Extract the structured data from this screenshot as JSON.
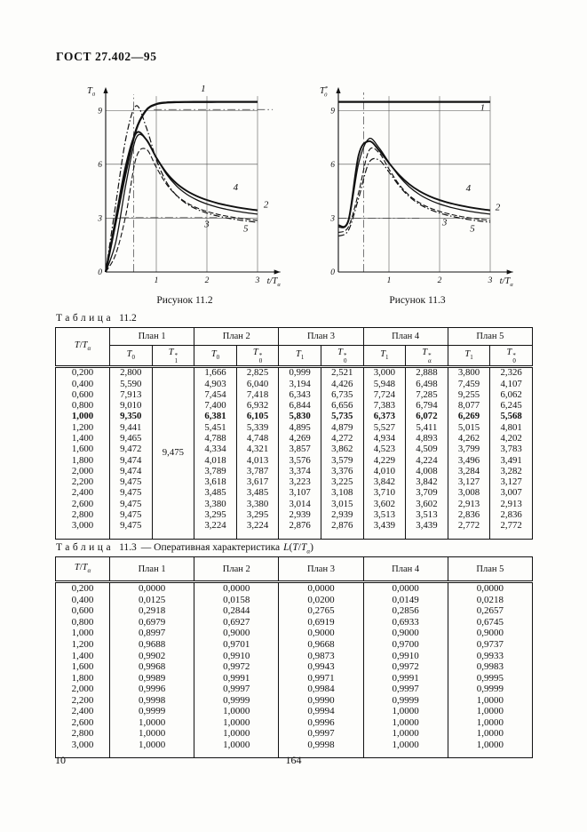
{
  "header": {
    "title": "ГОСТ 27.402—95"
  },
  "figures": [
    {
      "caption": "Рисунок 11.2"
    },
    {
      "caption": "Рисунок 11.3"
    }
  ],
  "chart_data": [
    {
      "type": "line",
      "title": "Рисунок 11.2",
      "ylabel": "T0",
      "xlabel": "t/Ta",
      "y_title": [
        {
          "t": "T"
        },
        {
          "t": "0",
          "sub": true
        }
      ],
      "x_title": [
        {
          "t": "t/T"
        },
        {
          "t": "α",
          "sub": true
        }
      ],
      "xlim": [
        0,
        3.45
      ],
      "ylim": [
        0,
        10.3
      ],
      "xticks": [
        1,
        2,
        3
      ],
      "yticks": [
        0,
        3,
        6,
        9
      ],
      "grid_x": [
        1,
        2,
        3
      ],
      "grid_y": [
        3,
        6,
        9
      ],
      "grid_top": 9.8,
      "grid_right": 3,
      "reflines": [
        {
          "x": 0.55,
          "y1": 0,
          "y2": 9.9
        },
        {
          "y": 9.05,
          "x1": 0.95,
          "x2": 3.3
        },
        {
          "y": 3.03,
          "x1": 0.3,
          "x2": 2.2
        }
      ],
      "x": [
        0,
        0.2,
        0.4,
        0.6,
        0.8,
        1,
        1.2,
        1.4,
        1.6,
        1.8,
        2,
        2.2,
        2.4,
        2.6,
        2.8,
        3
      ],
      "series": [
        {
          "name": "1",
          "dash": "solid",
          "width": 2.3,
          "values": [
            0,
            2.8,
            5.59,
            7.913,
            9.01,
            9.35,
            9.441,
            9.465,
            9.472,
            9.474,
            9.474,
            9.475,
            9.475,
            9.475,
            9.475,
            9.475
          ]
        },
        {
          "name": "2",
          "dash": "solid",
          "width": 1.3,
          "values": [
            0,
            1.666,
            4.903,
            7.454,
            7.4,
            6.381,
            5.451,
            4.788,
            4.334,
            4.018,
            3.789,
            3.618,
            3.485,
            3.38,
            3.295,
            3.224
          ]
        },
        {
          "name": "3",
          "dash": "dashed",
          "width": 1.1,
          "values": [
            0,
            0.999,
            3.194,
            6.343,
            6.844,
            5.83,
            4.895,
            4.269,
            3.857,
            3.576,
            3.374,
            3.223,
            3.107,
            3.014,
            2.939,
            2.876
          ]
        },
        {
          "name": "4",
          "dash": "solid",
          "width": 1.9,
          "values": [
            0,
            3,
            5.948,
            7.724,
            7.383,
            6.373,
            5.527,
            4.934,
            4.523,
            4.229,
            4.01,
            3.842,
            3.71,
            3.602,
            3.513,
            3.439
          ]
        },
        {
          "name": "5",
          "dash": "dashdot",
          "width": 1.2,
          "values": [
            0,
            3.8,
            7.459,
            9.255,
            8.077,
            6.269,
            5.015,
            4.262,
            3.799,
            3.496,
            3.284,
            3.127,
            3.008,
            2.913,
            2.836,
            2.772
          ]
        }
      ],
      "labels": [
        {
          "text": "1",
          "x": 1.88,
          "y": 10.05
        },
        {
          "text": "4",
          "x": 2.52,
          "y": 4.55
        },
        {
          "text": "2",
          "x": 3.12,
          "y": 3.6
        },
        {
          "text": "3",
          "x": 1.95,
          "y": 2.5
        },
        {
          "text": "5",
          "x": 2.72,
          "y": 2.25
        }
      ]
    },
    {
      "type": "line",
      "title": "Рисунок 11.3",
      "ylabel": "T0*",
      "xlabel": "t/Ta",
      "y_title": [
        {
          "t": "T"
        },
        {
          "t": "*",
          "sup": true
        },
        {
          "t": "0",
          "sub": true,
          "under": true
        }
      ],
      "x_title": [
        {
          "t": "t/T"
        },
        {
          "t": "α",
          "sub": true
        }
      ],
      "xlim": [
        0,
        3.45
      ],
      "ylim": [
        0,
        10.3
      ],
      "xticks": [
        1,
        2,
        3
      ],
      "yticks": [
        0,
        3,
        6,
        9
      ],
      "grid_x": [
        1,
        2,
        3
      ],
      "grid_y": [
        3,
        6,
        9
      ],
      "grid_top": 9.8,
      "grid_right": 3,
      "reflines": [
        {
          "x": 0.5,
          "y1": 0,
          "y2": 10
        },
        {
          "y": 3,
          "x1": 0,
          "x2": 1.6
        }
      ],
      "x": [
        0,
        0.2,
        0.4,
        0.6,
        0.8,
        1,
        1.2,
        1.4,
        1.6,
        1.8,
        2,
        2.2,
        2.4,
        2.6,
        2.8,
        3
      ],
      "series": [
        {
          "name": "1",
          "dash": "solid",
          "width": 2.3,
          "values": [
            9.475,
            9.475,
            9.475,
            9.475,
            9.475,
            9.475,
            9.475,
            9.475,
            9.475,
            9.475,
            9.475,
            9.475,
            9.475,
            9.475,
            9.475,
            9.475
          ]
        },
        {
          "name": "2",
          "dash": "solid",
          "width": 1.3,
          "values": [
            2.5,
            2.825,
            6.04,
            7.418,
            6.932,
            6.105,
            5.339,
            4.748,
            4.321,
            4.013,
            3.787,
            3.617,
            3.485,
            3.38,
            3.295,
            3.224
          ]
        },
        {
          "name": "3",
          "dash": "dashed",
          "width": 1.1,
          "values": [
            2.2,
            2.521,
            4.426,
            6.735,
            6.656,
            5.735,
            4.879,
            4.272,
            3.862,
            3.579,
            3.376,
            3.225,
            3.108,
            3.015,
            2.939,
            2.876
          ]
        },
        {
          "name": "4",
          "dash": "solid",
          "width": 1.9,
          "values": [
            2.6,
            2.888,
            6.498,
            7.285,
            6.794,
            6.072,
            5.411,
            4.893,
            4.509,
            4.224,
            4.008,
            3.842,
            3.709,
            3.602,
            3.513,
            3.439
          ]
        },
        {
          "name": "5",
          "dash": "dashdot",
          "width": 1.2,
          "values": [
            2.0,
            2.326,
            4.107,
            6.062,
            6.245,
            5.568,
            4.801,
            4.202,
            3.783,
            3.491,
            3.282,
            3.127,
            3.007,
            2.913,
            2.836,
            2.772
          ]
        }
      ],
      "labels": [
        {
          "text": "1",
          "x": 2.8,
          "y": 9.0
        },
        {
          "text": "4",
          "x": 2.52,
          "y": 4.5
        },
        {
          "text": "2",
          "x": 3.1,
          "y": 3.45
        },
        {
          "text": "3",
          "x": 2.05,
          "y": 2.6
        },
        {
          "text": "5",
          "x": 2.6,
          "y": 2.25
        }
      ]
    }
  ],
  "tables": {
    "t112": {
      "label_word": "Таблица",
      "number": "11.2",
      "corner_parts": [
        {
          "t": "T",
          "i": true
        },
        {
          "t": "/"
        },
        {
          "t": "T",
          "i": true
        },
        {
          "t": "α",
          "sub": true,
          "i": true
        }
      ],
      "plan_headers": [
        "План 1",
        "План 2",
        "План 3",
        "План 4",
        "План 5"
      ],
      "sub_headers": [
        [
          {
            "t": "T",
            "i": true
          },
          {
            "t": "0",
            "sub": true
          }
        ],
        [
          {
            "t": "T",
            "i": true
          },
          {
            "stack": {
              "sup": "*",
              "sub": "1"
            }
          }
        ],
        [
          {
            "t": "T",
            "i": true
          },
          {
            "t": "0",
            "sub": true
          }
        ],
        [
          {
            "t": "T",
            "i": true
          },
          {
            "stack": {
              "sup": "*",
              "sub": "0"
            }
          }
        ],
        [
          {
            "t": "T",
            "i": true
          },
          {
            "t": "1",
            "sub": true
          }
        ],
        [
          {
            "t": "T",
            "i": true
          },
          {
            "stack": {
              "sup": "*",
              "sub": "0"
            }
          }
        ],
        [
          {
            "t": "T",
            "i": true
          },
          {
            "t": "1",
            "sub": true
          }
        ],
        [
          {
            "t": "T",
            "i": true
          },
          {
            "stack": {
              "sup": "*",
              "sub": "α"
            }
          }
        ],
        [
          {
            "t": "T",
            "i": true
          },
          {
            "t": "1",
            "sub": true
          }
        ],
        [
          {
            "t": "T",
            "i": true
          },
          {
            "stack": {
              "sup": "*",
              "sub": "0"
            }
          }
        ]
      ],
      "merged": {
        "after": 1,
        "value": "9,475"
      },
      "bold_row": 4,
      "rows": [
        [
          "0,200",
          "2,800",
          "1,666",
          "2,825",
          "0,999",
          "2,521",
          "3,000",
          "2,888",
          "3,800",
          "2,326"
        ],
        [
          "0,400",
          "5,590",
          "4,903",
          "6,040",
          "3,194",
          "4,426",
          "5,948",
          "6,498",
          "7,459",
          "4,107"
        ],
        [
          "0,600",
          "7,913",
          "7,454",
          "7,418",
          "6,343",
          "6,735",
          "7,724",
          "7,285",
          "9,255",
          "6,062"
        ],
        [
          "0,800",
          "9,010",
          "7,400",
          "6,932",
          "6,844",
          "6,656",
          "7,383",
          "6,794",
          "8,077",
          "6,245"
        ],
        [
          "1,000",
          "9,350",
          "6,381",
          "6,105",
          "5,830",
          "5,735",
          "6,373",
          "6,072",
          "6,269",
          "5,568"
        ],
        [
          "1,200",
          "9,441",
          "5,451",
          "5,339",
          "4,895",
          "4,879",
          "5,527",
          "5,411",
          "5,015",
          "4,801"
        ],
        [
          "1,400",
          "9,465",
          "4,788",
          "4,748",
          "4,269",
          "4,272",
          "4,934",
          "4,893",
          "4,262",
          "4,202"
        ],
        [
          "1,600",
          "9,472",
          "4,334",
          "4,321",
          "3,857",
          "3,862",
          "4,523",
          "4,509",
          "3,799",
          "3,783"
        ],
        [
          "1,800",
          "9,474",
          "4,018",
          "4,013",
          "3,576",
          "3,579",
          "4,229",
          "4,224",
          "3,496",
          "3,491"
        ],
        [
          "2,000",
          "9,474",
          "3,789",
          "3,787",
          "3,374",
          "3,376",
          "4,010",
          "4,008",
          "3,284",
          "3,282"
        ],
        [
          "2,200",
          "9,475",
          "3,618",
          "3,617",
          "3,223",
          "3,225",
          "3,842",
          "3,842",
          "3,127",
          "3,127"
        ],
        [
          "2,400",
          "9,475",
          "3,485",
          "3,485",
          "3,107",
          "3,108",
          "3,710",
          "3,709",
          "3,008",
          "3,007"
        ],
        [
          "2,600",
          "9,475",
          "3,380",
          "3,380",
          "3,014",
          "3,015",
          "3,602",
          "3,602",
          "2,913",
          "2,913"
        ],
        [
          "2,800",
          "9,475",
          "3,295",
          "3,295",
          "2,939",
          "2,939",
          "3,513",
          "3,513",
          "2,836",
          "2,836"
        ],
        [
          "3,000",
          "9,475",
          "3,224",
          "3,224",
          "2,876",
          "2,876",
          "3,439",
          "3,439",
          "2,772",
          "2,772"
        ]
      ]
    },
    "t113": {
      "label_word": "Таблица",
      "number": "11.3",
      "suffix": "— Оперативная характеристика",
      "formula_parts": [
        {
          "t": "L",
          "i": true
        },
        {
          "t": "("
        },
        {
          "t": "T",
          "i": true
        },
        {
          "t": "/"
        },
        {
          "t": "T",
          "i": true
        },
        {
          "t": "α",
          "sub": true,
          "i": true
        },
        {
          "t": ")"
        }
      ],
      "corner_parts": [
        {
          "t": "T",
          "i": true
        },
        {
          "t": "/"
        },
        {
          "t": "T",
          "i": true
        },
        {
          "t": "α",
          "sub": true,
          "i": true
        }
      ],
      "plan_headers": [
        "План 1",
        "План 2",
        "План 3",
        "План 4",
        "План 5"
      ],
      "rows": [
        [
          "0,200",
          "0,0000",
          "0,0000",
          "0,0000",
          "0,0000",
          "0,0000"
        ],
        [
          "0,400",
          "0,0125",
          "0,0158",
          "0,0200",
          "0,0149",
          "0,0218"
        ],
        [
          "0,600",
          "0,2918",
          "0,2844",
          "0,2765",
          "0,2856",
          "0,2657"
        ],
        [
          "0,800",
          "0,6979",
          "0,6927",
          "0,6919",
          "0,6933",
          "0,6745"
        ],
        [
          "1,000",
          "0,8997",
          "0,9000",
          "0,9000",
          "0,9000",
          "0,9000"
        ],
        [
          "1,200",
          "0,9688",
          "0,9701",
          "0,9668",
          "0,9700",
          "0,9737"
        ],
        [
          "1,400",
          "0,9902",
          "0,9910",
          "0,9873",
          "0,9910",
          "0,9933"
        ],
        [
          "1,600",
          "0,9968",
          "0,9972",
          "0,9943",
          "0,9972",
          "0,9983"
        ],
        [
          "1,800",
          "0,9989",
          "0,9991",
          "0,9971",
          "0,9991",
          "0,9995"
        ],
        [
          "2,000",
          "0,9996",
          "0,9997",
          "0,9984",
          "0,9997",
          "0,9999"
        ],
        [
          "2,200",
          "0,9998",
          "0,9999",
          "0,9990",
          "0,9999",
          "1,0000"
        ],
        [
          "2,400",
          "0,9999",
          "1,0000",
          "0,9994",
          "1,0000",
          "1,0000"
        ],
        [
          "2,600",
          "1,0000",
          "1,0000",
          "0,9996",
          "1,0000",
          "1,0000"
        ],
        [
          "2,800",
          "1,0000",
          "1,0000",
          "0,9997",
          "1,0000",
          "1,0000"
        ],
        [
          "3,000",
          "1,0000",
          "1,0000",
          "0,9998",
          "1,0000",
          "1,0000"
        ]
      ]
    }
  },
  "footer": {
    "page_left": "10",
    "page_center": "164"
  }
}
